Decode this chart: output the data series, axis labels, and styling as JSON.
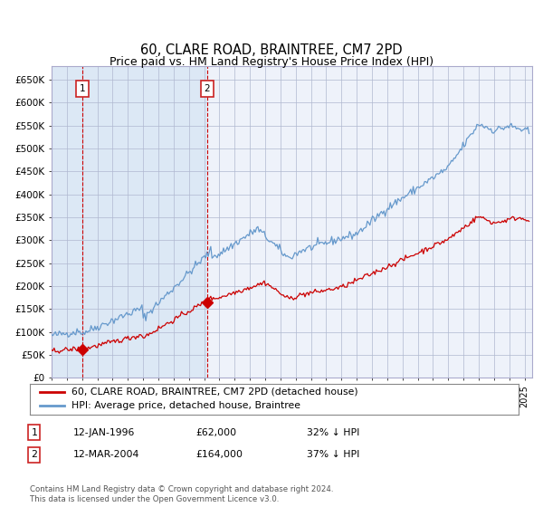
{
  "title": "60, CLARE ROAD, BRAINTREE, CM7 2PD",
  "subtitle": "Price paid vs. HM Land Registry's House Price Index (HPI)",
  "title_fontsize": 10.5,
  "subtitle_fontsize": 9.0,
  "ylim": [
    0,
    680000
  ],
  "yticks": [
    0,
    50000,
    100000,
    150000,
    200000,
    250000,
    300000,
    350000,
    400000,
    450000,
    500000,
    550000,
    600000,
    650000
  ],
  "ytick_labels": [
    "£0",
    "£50K",
    "£100K",
    "£150K",
    "£200K",
    "£250K",
    "£300K",
    "£350K",
    "£400K",
    "£450K",
    "£500K",
    "£550K",
    "£600K",
    "£650K"
  ],
  "hpi_color": "#6699cc",
  "price_color": "#cc0000",
  "background_color": "#ffffff",
  "plot_bg_color": "#eef2fa",
  "shaded_bg_color": "#dce8f5",
  "grid_color": "#b0b8d0",
  "purchase1_date_num": 1996.04,
  "purchase1_price": 62000,
  "purchase2_date_num": 2004.2,
  "purchase2_price": 164000,
  "purchase1_label": "1",
  "purchase2_label": "2",
  "legend_line1": "60, CLARE ROAD, BRAINTREE, CM7 2PD (detached house)",
  "legend_line2": "HPI: Average price, detached house, Braintree",
  "table_row1": [
    "1",
    "12-JAN-1996",
    "£62,000",
    "32% ↓ HPI"
  ],
  "table_row2": [
    "2",
    "12-MAR-2004",
    "£164,000",
    "37% ↓ HPI"
  ],
  "footnote": "Contains HM Land Registry data © Crown copyright and database right 2024.\nThis data is licensed under the Open Government Licence v3.0.",
  "xmin": 1994.0,
  "xmax": 2025.5
}
